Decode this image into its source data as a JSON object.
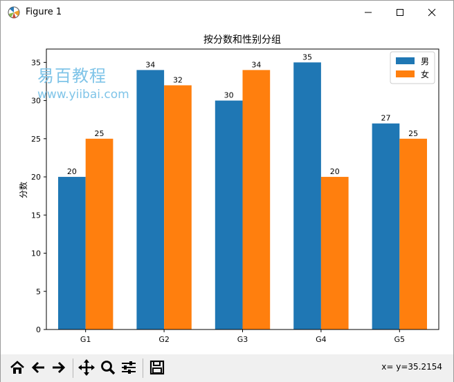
{
  "window": {
    "title": "Figure 1"
  },
  "watermark": {
    "text_cn": "易百教程",
    "url": "www.yiibai.com"
  },
  "toolbar": {
    "buttons": [
      "home-icon",
      "back-arrow-icon",
      "forward-arrow-icon",
      "pan-icon",
      "zoom-icon",
      "subplots-icon",
      "save-icon"
    ],
    "coords_text": "x= y=35.2154"
  },
  "colors": {
    "male": "#1f77b4",
    "female": "#ff7f0e"
  },
  "chart_data": {
    "type": "bar",
    "title": "按分数和性别分组",
    "xlabel": "",
    "ylabel": "分数",
    "categories": [
      "G1",
      "G2",
      "G3",
      "G4",
      "G5"
    ],
    "series": [
      {
        "name": "男",
        "values": [
          20,
          34,
          30,
          35,
          27
        ]
      },
      {
        "name": "女",
        "values": [
          25,
          32,
          34,
          20,
          25
        ]
      }
    ],
    "ylim": [
      0,
      36.75
    ],
    "yticks": [
      0,
      5,
      10,
      15,
      20,
      25,
      30,
      35
    ],
    "legend": "top-right",
    "grid": false
  }
}
